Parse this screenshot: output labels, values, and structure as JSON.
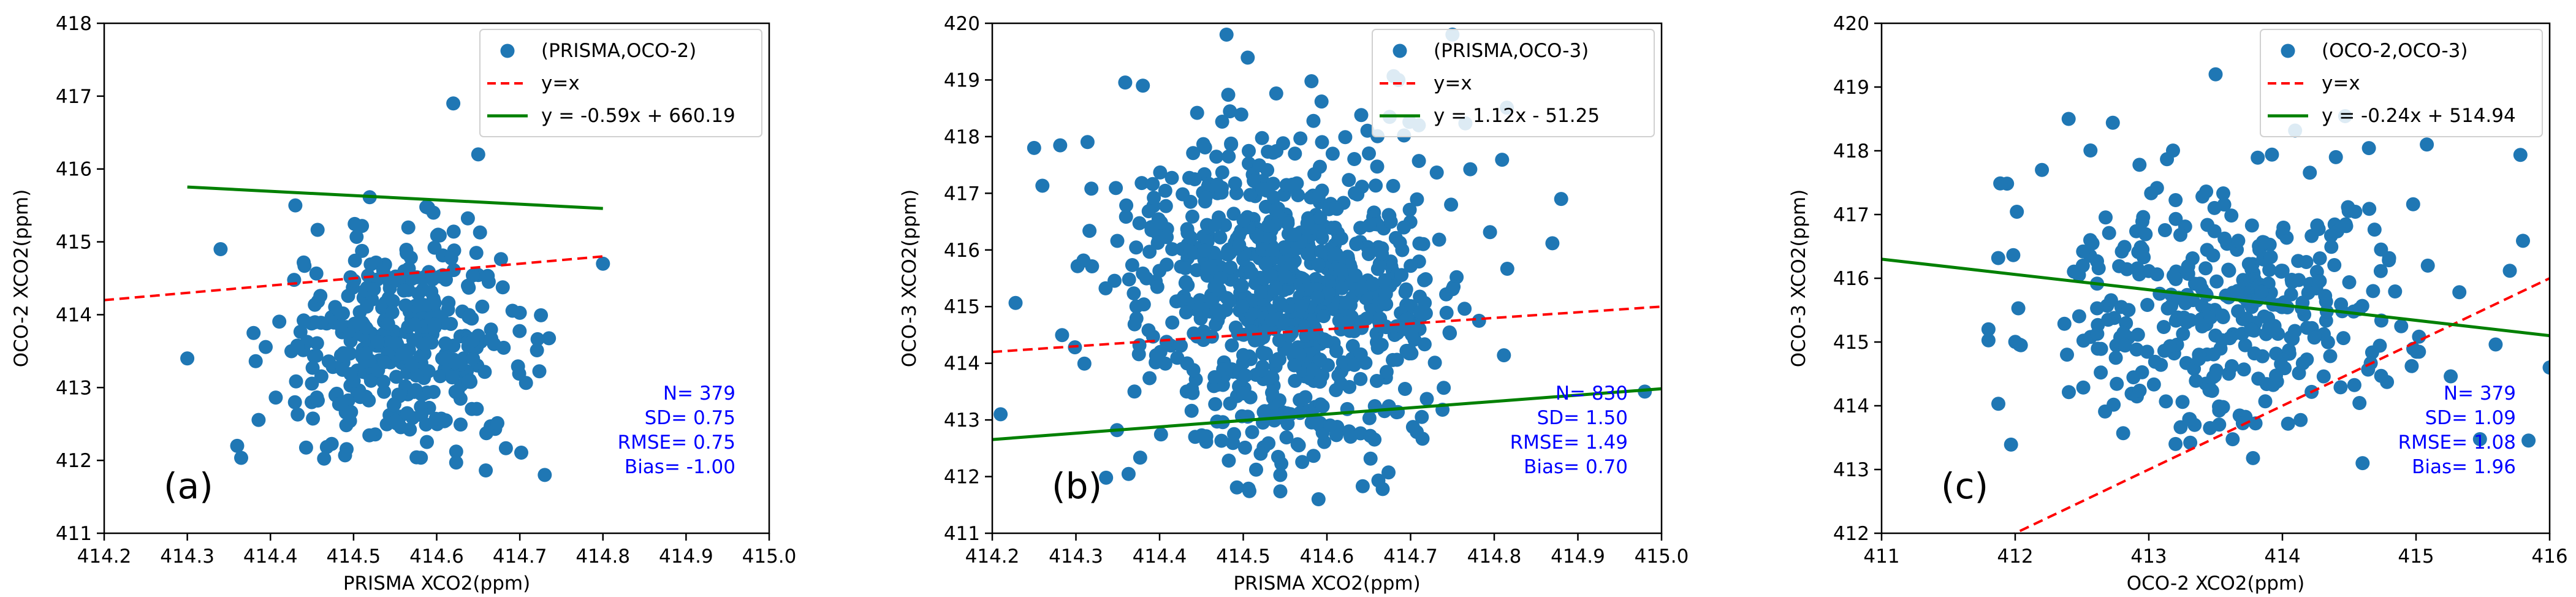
{
  "chart_data": [
    {
      "type": "scatter",
      "panel_label": "(a)",
      "xlabel": "PRISMA XCO2(ppm)",
      "ylabel": "OCO-2 XCO2(ppm)",
      "xlim": [
        414.2,
        415.0
      ],
      "ylim": [
        411,
        418
      ],
      "xticks": [
        "414.2",
        "414.3",
        "414.4",
        "414.5",
        "414.6",
        "414.7",
        "414.8",
        "414.9",
        "415.0"
      ],
      "yticks": [
        "411",
        "412",
        "413",
        "414",
        "415",
        "416",
        "417",
        "418"
      ],
      "legend_position": "upper right",
      "legend": [
        "(PRISMA,OCO-2)",
        "y=x",
        "y = -0.59x + 660.19"
      ],
      "fit": {
        "slope": -0.59,
        "intercept": 660.19,
        "x_range": [
          414.3,
          414.8
        ]
      },
      "identity": {
        "x_range": [
          414.2,
          414.8
        ]
      },
      "stats": [
        "N= 379",
        "SD= 0.75",
        "RMSE= 0.75",
        "Bias= -1.00"
      ],
      "points": {
        "n": 379,
        "x_mean": 414.56,
        "x_sd": 0.075,
        "y_mean": 413.56,
        "y_sd": 0.75,
        "x_range": [
          414.3,
          414.8
        ],
        "y_range": [
          411.8,
          416.9
        ]
      },
      "outliers": [
        [
          414.62,
          416.9
        ],
        [
          414.65,
          416.2
        ],
        [
          414.43,
          415.5
        ],
        [
          414.8,
          414.7
        ],
        [
          414.34,
          414.9
        ],
        [
          414.36,
          412.2
        ],
        [
          414.73,
          411.8
        ],
        [
          414.3,
          413.4
        ]
      ]
    },
    {
      "type": "scatter",
      "panel_label": "(b)",
      "xlabel": "PRISMA XCO2(ppm)",
      "ylabel": "OCO-3 XCO2(ppm)",
      "xlim": [
        414.2,
        415.0
      ],
      "ylim": [
        411,
        420
      ],
      "xticks": [
        "414.2",
        "414.3",
        "414.4",
        "414.5",
        "414.6",
        "414.7",
        "414.8",
        "414.9",
        "415.0"
      ],
      "yticks": [
        "411",
        "412",
        "413",
        "414",
        "415",
        "416",
        "417",
        "418",
        "419",
        "420"
      ],
      "legend_position": "upper right",
      "legend": [
        "(PRISMA,OCO-3)",
        "y=x",
        "y = 1.12x - 51.25"
      ],
      "fit": {
        "slope": 1.12,
        "intercept": -51.25,
        "x_range": [
          414.2,
          415.0
        ]
      },
      "identity": {
        "x_range": [
          414.2,
          415.0
        ]
      },
      "stats": [
        "N= 830",
        "SD= 1.50",
        "RMSE= 1.49",
        "Bias= 0.70"
      ],
      "points": {
        "n": 830,
        "x_mean": 414.55,
        "x_sd": 0.095,
        "y_mean": 415.25,
        "y_sd": 1.5,
        "x_range": [
          414.2,
          414.98
        ],
        "y_range": [
          411.6,
          419.8
        ]
      },
      "outliers": [
        [
          414.48,
          419.8
        ],
        [
          414.75,
          419.8
        ],
        [
          414.38,
          418.9
        ],
        [
          414.88,
          416.9
        ],
        [
          414.98,
          413.5
        ],
        [
          414.21,
          413.1
        ],
        [
          414.59,
          411.6
        ],
        [
          414.25,
          417.8
        ]
      ]
    },
    {
      "type": "scatter",
      "panel_label": "(c)",
      "xlabel": "OCO-2 XCO2(ppm)",
      "ylabel": "OCO-3 XCO2(ppm)",
      "xlim": [
        411,
        416
      ],
      "ylim": [
        412,
        420
      ],
      "xticks": [
        "411",
        "412",
        "413",
        "414",
        "415",
        "416"
      ],
      "yticks": [
        "412",
        "413",
        "414",
        "415",
        "416",
        "417",
        "418",
        "419",
        "420"
      ],
      "legend_position": "upper right",
      "legend": [
        "(OCO-2,OCO-3)",
        "y=x",
        "y = -0.24x + 514.94"
      ],
      "fit": {
        "slope": -0.24,
        "intercept": 514.94,
        "x_range": [
          411,
          416
        ]
      },
      "identity": {
        "x_range": [
          411,
          416
        ]
      },
      "stats": [
        "N= 379",
        "SD= 1.09",
        "RMSE= 1.08",
        "Bias= 1.96"
      ],
      "points": {
        "n": 379,
        "x_mean": 413.6,
        "x_sd": 0.75,
        "y_mean": 415.5,
        "y_sd": 1.09,
        "x_range": [
          411.8,
          416.0
        ],
        "y_range": [
          413.1,
          419.2
        ]
      },
      "outliers": [
        [
          412.4,
          418.5
        ],
        [
          413.5,
          419.2
        ],
        [
          414.4,
          417.9
        ],
        [
          411.8,
          415.2
        ],
        [
          416.0,
          414.6
        ],
        [
          413.2,
          413.4
        ],
        [
          414.6,
          413.1
        ],
        [
          412.2,
          417.7
        ]
      ]
    }
  ],
  "colors": {
    "points": "#1f77b4",
    "identity": "#ff0000",
    "fit": "#008000",
    "stats": "#0000ff"
  }
}
